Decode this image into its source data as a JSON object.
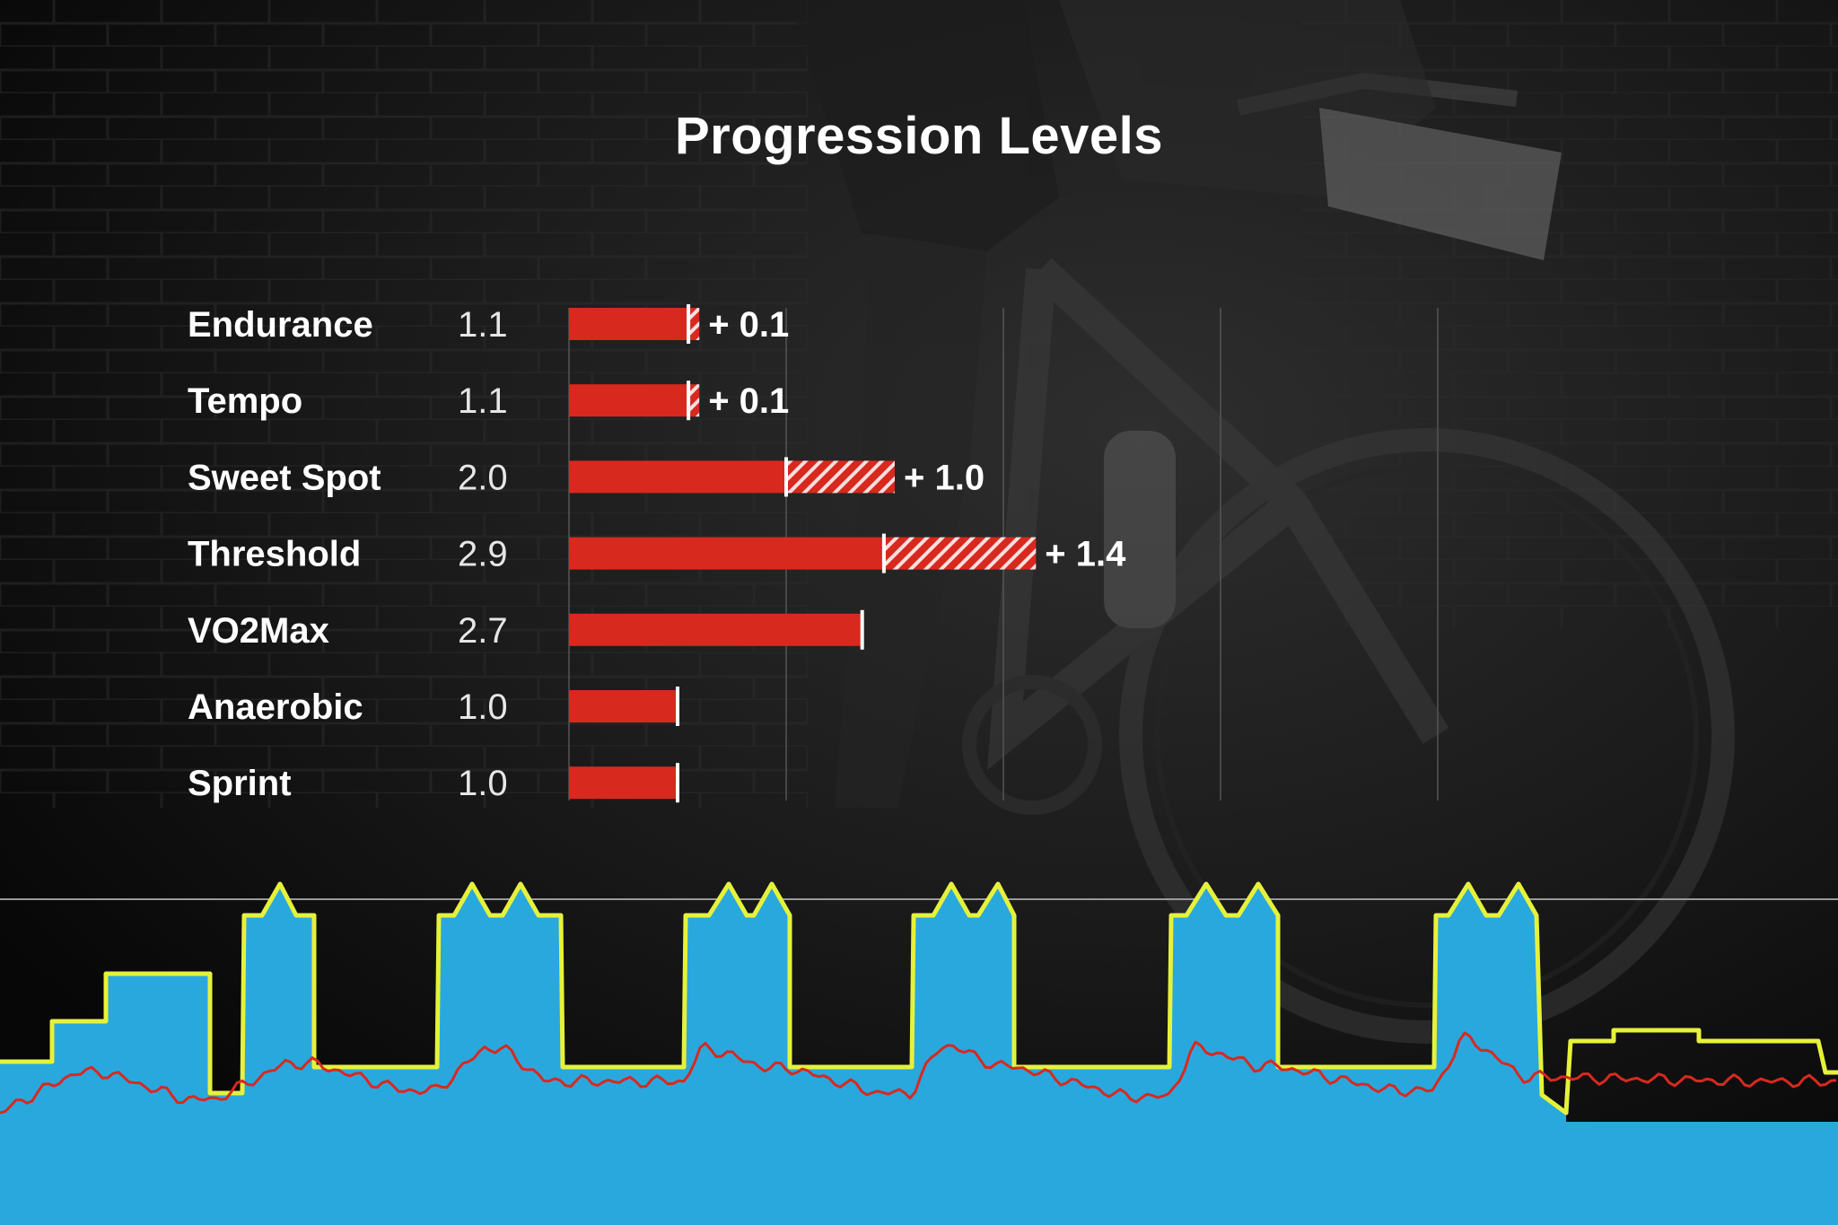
{
  "title": "Progression Levels",
  "chart_data": {
    "type": "bar",
    "orientation": "horizontal",
    "title": "Progression Levels",
    "categories": [
      "Endurance",
      "Tempo",
      "Sweet Spot",
      "Threshold",
      "VO2Max",
      "Anaerobic",
      "Sprint"
    ],
    "series": [
      {
        "values": [
          1.1,
          1.1,
          2.0,
          2.9,
          2.7,
          1.0,
          1.0
        ]
      },
      {
        "values": [
          0.1,
          0.1,
          1.0,
          1.4,
          null,
          null,
          null
        ]
      }
    ],
    "value_labels": [
      "1.1",
      "1.1",
      "2.0",
      "2.9",
      "2.7",
      "1.0",
      "1.0"
    ],
    "delta_labels": [
      "+ 0.1",
      "+ 0.1",
      "+ 1.0",
      "+ 1.4",
      "",
      "",
      ""
    ],
    "xlim": [
      0,
      10
    ],
    "grid": true,
    "colors": {
      "bar": "#d8291f",
      "gain_hatch": "#d8291f",
      "marker": "#ffffff",
      "grid": "#555555"
    }
  },
  "workout_graph": {
    "colors": {
      "fill": "#29a8de",
      "target": "#e6f23a",
      "heart_rate": "#d8291f",
      "ftp_line": "#9a9a9a"
    }
  }
}
